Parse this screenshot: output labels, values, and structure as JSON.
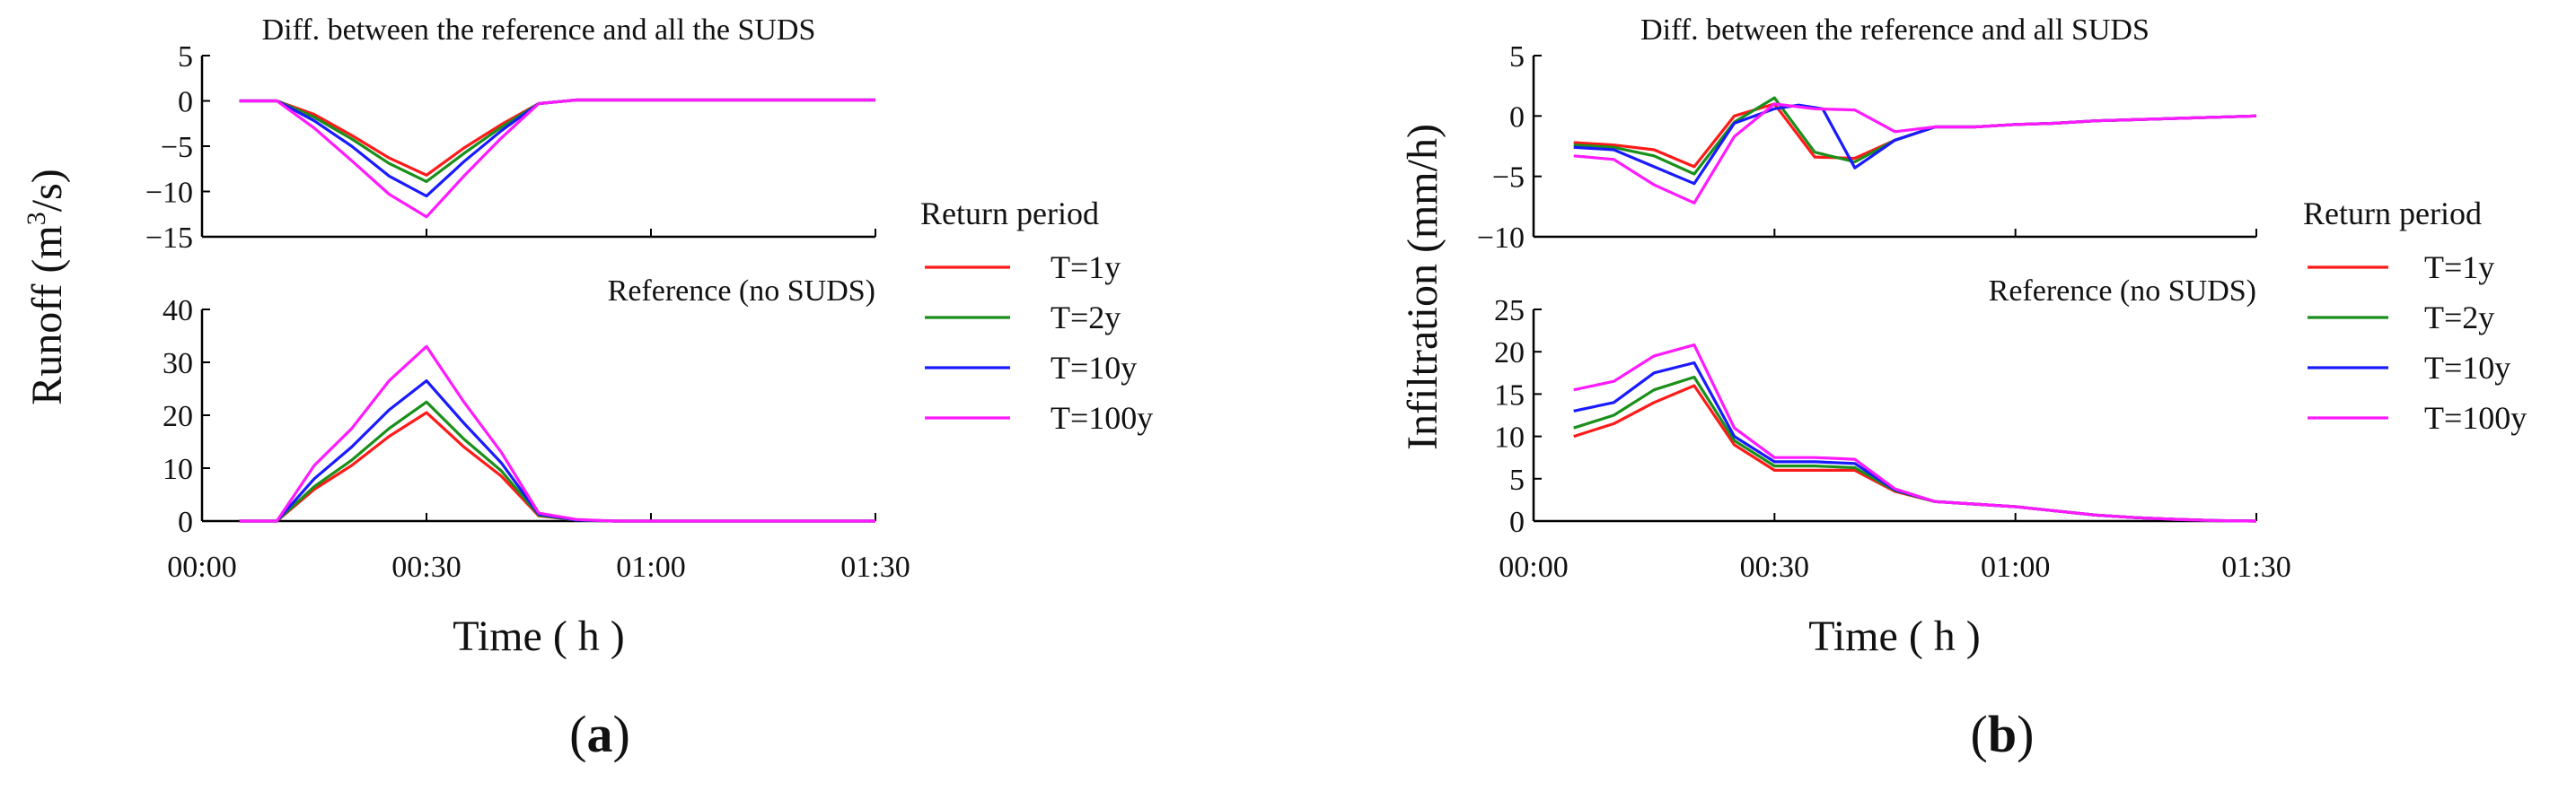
{
  "chart_data": [
    {
      "id": "a",
      "type": "line",
      "panel_label_prefix": "(",
      "panel_label_letter": "a",
      "panel_label_suffix": ")",
      "ylabel_main": "Runoff (m",
      "ylabel_sup": "3",
      "ylabel_end": "/s)",
      "xlabel": "Time ( h )",
      "x": [
        5,
        10,
        15,
        20,
        25,
        30,
        35,
        40,
        45,
        50,
        55,
        60,
        65,
        70,
        75,
        80,
        85,
        90
      ],
      "xticks": [
        0,
        30,
        60,
        90
      ],
      "xtick_labels": [
        "00:00",
        "00:30",
        "01:00",
        "01:30"
      ],
      "xlim": [
        0,
        90
      ],
      "legend_title": "Return period",
      "series_names": [
        "T=1y",
        "T=2y",
        "T=10y",
        "T=100y"
      ],
      "colors": [
        "#ff1a1a",
        "#1a8f1a",
        "#1a1aff",
        "#ff1aff"
      ],
      "subplots": [
        {
          "title": "Diff. between the reference and all the SUDS",
          "title_align": "center",
          "ylim": [
            -15,
            5
          ],
          "yticks": [
            5,
            0,
            -5,
            -10,
            -15
          ],
          "ytick_labels": [
            "5",
            "0",
            "−5",
            "−10",
            "−15"
          ],
          "series": [
            {
              "name": "T=1y",
              "values": [
                0,
                0,
                -1.5,
                -3.8,
                -6.3,
                -8.2,
                -5.2,
                -2.6,
                -0.3,
                0.1,
                0.1,
                0.1,
                0.1,
                0.1,
                0.1,
                0.1,
                0.1,
                0.1
              ]
            },
            {
              "name": "T=2y",
              "values": [
                0,
                0,
                -1.8,
                -4.2,
                -6.9,
                -8.9,
                -5.8,
                -2.9,
                -0.3,
                0.1,
                0.1,
                0.1,
                0.1,
                0.1,
                0.1,
                0.1,
                0.1,
                0.1
              ]
            },
            {
              "name": "T=10y",
              "values": [
                0,
                0,
                -2.2,
                -5.0,
                -8.3,
                -10.5,
                -6.7,
                -3.3,
                -0.3,
                0.1,
                0.1,
                0.1,
                0.1,
                0.1,
                0.1,
                0.1,
                0.1,
                0.1
              ]
            },
            {
              "name": "T=100y",
              "values": [
                0,
                0,
                -3.0,
                -6.6,
                -10.3,
                -12.8,
                -8.3,
                -4.1,
                -0.3,
                0.1,
                0.1,
                0.1,
                0.1,
                0.1,
                0.1,
                0.1,
                0.1,
                0.1
              ]
            }
          ]
        },
        {
          "title": "Reference (no SUDS)",
          "title_align": "right",
          "ylim": [
            0,
            40
          ],
          "yticks": [
            40,
            30,
            20,
            10,
            0
          ],
          "ytick_labels": [
            "40",
            "30",
            "20",
            "10",
            "0"
          ],
          "series": [
            {
              "name": "T=1y",
              "values": [
                0,
                0,
                6.0,
                10.5,
                16.0,
                20.5,
                14.0,
                8.5,
                1.0,
                0.2,
                0,
                0,
                0,
                0,
                0,
                0,
                0,
                0
              ]
            },
            {
              "name": "T=2y",
              "values": [
                0,
                0,
                6.5,
                11.5,
                17.5,
                22.5,
                15.5,
                9.5,
                1.1,
                0.2,
                0,
                0,
                0,
                0,
                0,
                0,
                0,
                0
              ]
            },
            {
              "name": "T=10y",
              "values": [
                0,
                0,
                8.0,
                14.0,
                21.0,
                26.5,
                18.5,
                11.0,
                1.3,
                0.2,
                0,
                0,
                0,
                0,
                0,
                0,
                0,
                0
              ]
            },
            {
              "name": "T=100y",
              "values": [
                0,
                0,
                10.5,
                17.5,
                26.5,
                33.0,
                22.5,
                13.0,
                1.5,
                0.3,
                0,
                0,
                0,
                0,
                0,
                0,
                0,
                0
              ]
            }
          ]
        }
      ]
    },
    {
      "id": "b",
      "type": "line",
      "panel_label_prefix": "(",
      "panel_label_letter": "b",
      "panel_label_suffix": ")",
      "ylabel_main": "Infiltration (mm/h)",
      "xlabel": "Time ( h )",
      "x": [
        5,
        10,
        15,
        20,
        25,
        30,
        35,
        40,
        45,
        50,
        55,
        60,
        65,
        70,
        75,
        80,
        85,
        90
      ],
      "xticks": [
        0,
        30,
        60,
        90
      ],
      "xtick_labels": [
        "00:00",
        "00:30",
        "01:00",
        "01:30"
      ],
      "xlim": [
        0,
        90
      ],
      "legend_title": "Return period",
      "series_names": [
        "T=1y",
        "T=2y",
        "T=10y",
        "T=100y"
      ],
      "colors": [
        "#ff1a1a",
        "#1a8f1a",
        "#1a1aff",
        "#ff1aff"
      ],
      "subplots": [
        {
          "title": "Diff. between the reference and all SUDS",
          "title_align": "center",
          "ylim": [
            -10,
            5
          ],
          "yticks": [
            5,
            0,
            -5,
            -10
          ],
          "ytick_labels": [
            "5",
            "0",
            "−5",
            "−10"
          ],
          "series": [
            {
              "x": [
                5,
                10,
                15,
                20,
                25,
                30,
                35,
                40,
                45,
                50,
                55,
                60,
                65,
                70,
                75,
                80,
                85,
                90
              ],
              "name": "T=1y",
              "values": [
                -2.2,
                -2.4,
                -2.8,
                -4.2,
                0.0,
                1.0,
                -3.4,
                -3.5,
                -2.0,
                -0.9,
                -0.9,
                -0.7,
                -0.6,
                -0.4,
                -0.3,
                -0.2,
                -0.1,
                0.0
              ]
            },
            {
              "x": [
                5,
                10,
                15,
                20,
                25,
                30,
                35,
                40,
                45,
                50,
                55,
                60,
                65,
                70,
                75,
                80,
                85,
                90
              ],
              "name": "T=2y",
              "values": [
                -2.4,
                -2.6,
                -3.3,
                -4.8,
                -0.5,
                1.5,
                -3.0,
                -3.8,
                -2.0,
                -0.9,
                -0.9,
                -0.7,
                -0.6,
                -0.4,
                -0.3,
                -0.2,
                -0.1,
                0.0
              ]
            },
            {
              "x": [
                5,
                10,
                15,
                20,
                25,
                30,
                33,
                36,
                40,
                45,
                50,
                55,
                60,
                65,
                70,
                75,
                80,
                85,
                90
              ],
              "name": "T=10y",
              "values": [
                -2.6,
                -2.8,
                -4.2,
                -5.6,
                -0.6,
                0.6,
                0.9,
                0.6,
                -4.3,
                -2.0,
                -0.9,
                -0.9,
                -0.7,
                -0.6,
                -0.4,
                -0.3,
                -0.2,
                -0.1,
                0.0
              ]
            },
            {
              "x": [
                5,
                10,
                15,
                20,
                25,
                30,
                35,
                40,
                45,
                50,
                55,
                60,
                65,
                70,
                75,
                80,
                85,
                90
              ],
              "name": "T=100y",
              "values": [
                -3.3,
                -3.6,
                -5.7,
                -7.2,
                -1.7,
                1.0,
                0.6,
                0.5,
                -1.3,
                -0.9,
                -0.9,
                -0.7,
                -0.6,
                -0.4,
                -0.3,
                -0.2,
                -0.1,
                0.0
              ]
            }
          ]
        },
        {
          "title": "Reference (no SUDS)",
          "title_align": "right",
          "ylim": [
            0,
            25
          ],
          "yticks": [
            25,
            20,
            15,
            10,
            5,
            0
          ],
          "ytick_labels": [
            "25",
            "20",
            "15",
            "10",
            "5",
            "0"
          ],
          "series": [
            {
              "name": "T=1y",
              "values": [
                10.0,
                11.5,
                14.0,
                16.0,
                9.0,
                6.0,
                6.0,
                6.0,
                3.5,
                2.3,
                2.0,
                1.7,
                1.2,
                0.7,
                0.4,
                0.2,
                0.05,
                0
              ]
            },
            {
              "name": "T=2y",
              "values": [
                11.0,
                12.5,
                15.5,
                17.0,
                9.5,
                6.5,
                6.5,
                6.3,
                3.6,
                2.3,
                2.0,
                1.7,
                1.2,
                0.7,
                0.4,
                0.2,
                0.05,
                0
              ]
            },
            {
              "name": "T=10y",
              "values": [
                13.0,
                14.0,
                17.5,
                18.7,
                10.0,
                7.0,
                7.0,
                6.8,
                3.7,
                2.3,
                2.0,
                1.7,
                1.2,
                0.7,
                0.4,
                0.2,
                0.05,
                0
              ]
            },
            {
              "name": "T=100y",
              "values": [
                15.5,
                16.5,
                19.5,
                20.8,
                11.0,
                7.5,
                7.5,
                7.3,
                3.8,
                2.3,
                2.0,
                1.7,
                1.2,
                0.7,
                0.4,
                0.2,
                0.05,
                0
              ]
            }
          ]
        }
      ]
    }
  ]
}
